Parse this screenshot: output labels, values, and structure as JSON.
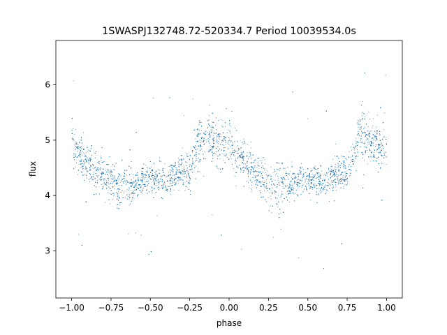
{
  "chart_data": {
    "type": "scatter",
    "title": "1SWASPJ132748.72-520334.7 Period 10039534.0s",
    "xlabel": "phase",
    "ylabel": "flux",
    "xlim": [
      -1.1,
      1.1
    ],
    "ylim": [
      2.15,
      6.8
    ],
    "xticks": [
      -1.0,
      -0.75,
      -0.5,
      -0.25,
      0.0,
      0.25,
      0.5,
      0.75,
      1.0
    ],
    "xtick_labels": [
      "−1.00",
      "−0.75",
      "−0.50",
      "−0.25",
      "0.00",
      "0.25",
      "0.50",
      "0.75",
      "1.00"
    ],
    "yticks": [
      3,
      4,
      5,
      6
    ],
    "ytick_labels": [
      "3",
      "4",
      "5",
      "6"
    ],
    "grid": false,
    "marker_color": "#1f77b4",
    "series": [
      {
        "name": "",
        "profile": {
          "phase": [
            0.0,
            0.05,
            0.1,
            0.15,
            0.2,
            0.25,
            0.3,
            0.35,
            0.4,
            0.45,
            0.5,
            0.55,
            0.6,
            0.65,
            0.7,
            0.75,
            0.8,
            0.85,
            0.9,
            0.95,
            1.0
          ],
          "median_flux": [
            5.0,
            4.75,
            4.6,
            4.45,
            4.35,
            4.25,
            4.15,
            4.25,
            4.2,
            4.3,
            4.3,
            4.3,
            4.25,
            4.35,
            4.45,
            4.4,
            4.9,
            5.15,
            5.0,
            4.95,
            4.9
          ],
          "spread": [
            0.45,
            0.4,
            0.35,
            0.35,
            0.35,
            0.4,
            0.45,
            0.4,
            0.25,
            0.25,
            0.25,
            0.3,
            0.25,
            0.25,
            0.3,
            0.3,
            0.45,
            0.55,
            0.4,
            0.4,
            0.45
          ]
        }
      }
    ]
  }
}
